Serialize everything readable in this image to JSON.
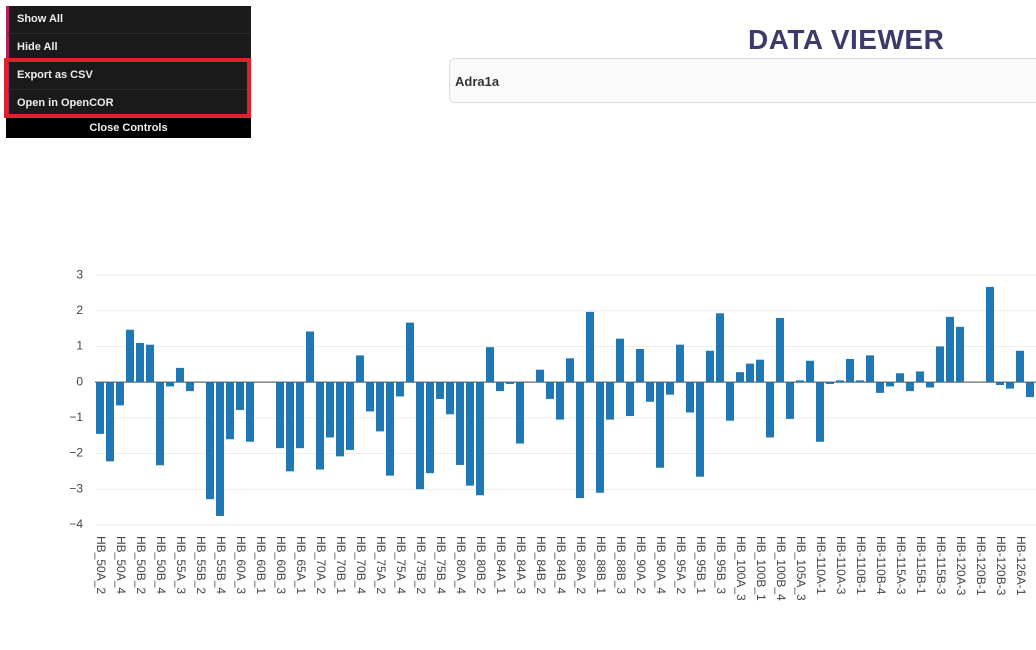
{
  "menu": {
    "items": [
      "Show All",
      "Hide All",
      "Export as CSV",
      "Open in OpenCOR"
    ],
    "close": "Close Controls"
  },
  "header": {
    "title": "DATA VIEWER"
  },
  "search": {
    "value": "Adra1a"
  },
  "chart_data": {
    "type": "bar",
    "color": "#1f77b4",
    "grid": true,
    "categories": [
      "HB_50A_2",
      null,
      "HB_50A_4",
      null,
      "HB_50B_2",
      null,
      "HB_50B_4",
      null,
      "HB_55A_3",
      null,
      "HB_55B_2",
      null,
      "HB_55B_4",
      null,
      "HB_60A_3",
      null,
      "HB_60B_1",
      null,
      "HB_60B_3",
      null,
      "HB_65A_1",
      null,
      "HB_70A_2",
      null,
      "HB_70B_1",
      null,
      "HB_70B_4",
      null,
      "HB_75A_2",
      null,
      "HB_75A_4",
      null,
      "HB_75B_2",
      null,
      "HB_75B_4",
      null,
      "HB_80A_4",
      null,
      "HB_80B_2",
      null,
      "HB_84A_1",
      null,
      "HB_84A_3",
      null,
      "HB_84B_2",
      null,
      "HB_84B_4",
      null,
      "HB_88A_2",
      null,
      "HB_88B_1",
      null,
      "HB_88B_3",
      null,
      "HB_90A_2",
      null,
      "HB_90A_4",
      null,
      "HB_95A_2",
      null,
      "HB_95B_1",
      null,
      "HB_95B_3",
      null,
      "HB_100A_3",
      null,
      "HB_100B_1",
      null,
      "HB_100B_4",
      null,
      "HB_105A_3",
      null,
      "HB-110A-1",
      null,
      "HB-110A-3",
      null,
      "HB-110B-1",
      null,
      "HB-110B-4",
      null,
      "HB-115A-3",
      null,
      "HB-115B-1",
      null,
      "HB-115B-3",
      null,
      "HB-120A-3",
      null,
      "HB-120B-1",
      null,
      "HB-120B-3",
      null,
      "HB-126A-1",
      null
    ],
    "values": [
      -1.45,
      -2.22,
      -0.65,
      1.47,
      1.1,
      1.05,
      -2.33,
      -0.12,
      0.4,
      -0.25,
      0,
      -3.28,
      -3.75,
      -1.6,
      -0.78,
      -1.67,
      0,
      0,
      -1.85,
      -2.5,
      -1.85,
      1.42,
      -2.45,
      -1.55,
      -2.08,
      -1.9,
      0.75,
      -0.82,
      -1.38,
      -2.62,
      -0.4,
      1.67,
      -3.0,
      -2.55,
      -0.47,
      -0.9,
      -2.32,
      -2.9,
      -3.17,
      0.98,
      -0.25,
      -0.05,
      -1.72,
      0,
      0.35,
      -0.47,
      -1.05,
      0.67,
      -3.25,
      1.97,
      -3.1,
      -1.05,
      1.22,
      -0.95,
      0.93,
      -0.55,
      -2.4,
      -0.35,
      1.05,
      -0.85,
      -2.65,
      0.88,
      1.93,
      -1.08,
      0.28,
      0.52,
      0.63,
      -1.55,
      1.8,
      -1.03,
      0.05,
      0.6,
      -1.67,
      -0.05,
      0.05,
      0.65,
      0.05,
      0.75,
      -0.3,
      -0.12,
      0.25,
      -0.25,
      0.3,
      -0.15,
      1.0,
      1.83,
      1.55,
      0,
      0,
      2.67,
      -0.08,
      -0.18,
      0.88,
      -0.42
    ],
    "ylim": [
      -4.2,
      3.2
    ],
    "yticks": [
      {
        "value": -4,
        "label": "−4"
      },
      {
        "value": -3,
        "label": "−3"
      },
      {
        "value": -2,
        "label": "−2"
      },
      {
        "value": -1,
        "label": "−1"
      },
      0,
      1,
      2,
      3
    ]
  }
}
